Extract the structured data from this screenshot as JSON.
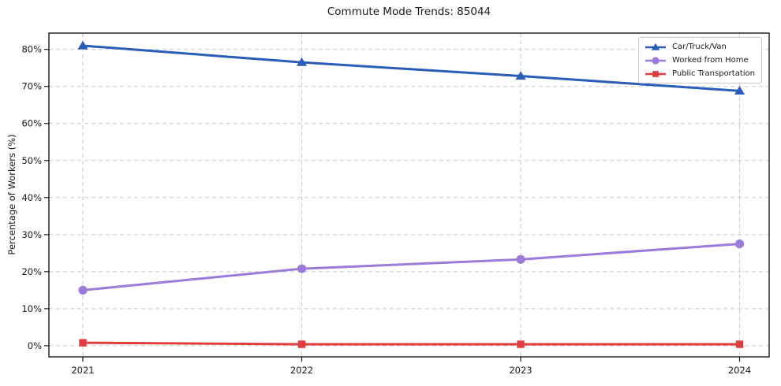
{
  "chart_data": {
    "type": "line",
    "title": "Commute Mode Trends: 85044",
    "xlabel": "",
    "ylabel": "Percentage of Workers (%)",
    "x": [
      2021,
      2022,
      2023,
      2024
    ],
    "x_tick_labels": [
      "2021",
      "2022",
      "2023",
      "2024"
    ],
    "y_ticks": [
      0,
      10,
      20,
      30,
      40,
      50,
      60,
      70,
      80
    ],
    "y_tick_labels": [
      "0%",
      "10%",
      "20%",
      "30%",
      "40%",
      "50%",
      "60%",
      "70%",
      "80%"
    ],
    "ylim": [
      -3,
      84.4
    ],
    "grid": true,
    "grid_style": "dashed",
    "legend_position": "upper right",
    "series": [
      {
        "name": "Car/Truck/Van",
        "marker": "triangle",
        "color": "#2a5db8",
        "values": [
          81.0,
          76.5,
          72.8,
          68.8
        ]
      },
      {
        "name": "Worked from Home",
        "marker": "circle",
        "color": "#9d7bdb",
        "values": [
          15.0,
          20.8,
          23.3,
          27.5
        ]
      },
      {
        "name": "Public Transportation",
        "marker": "square",
        "color": "#e03e3e",
        "values": [
          0.8,
          0.4,
          0.4,
          0.4
        ]
      }
    ],
    "colors": {
      "background": "#ffffff",
      "grid": "#c9c9c9",
      "spine": "#1a1a1a",
      "text": "#1a1a1a"
    }
  }
}
